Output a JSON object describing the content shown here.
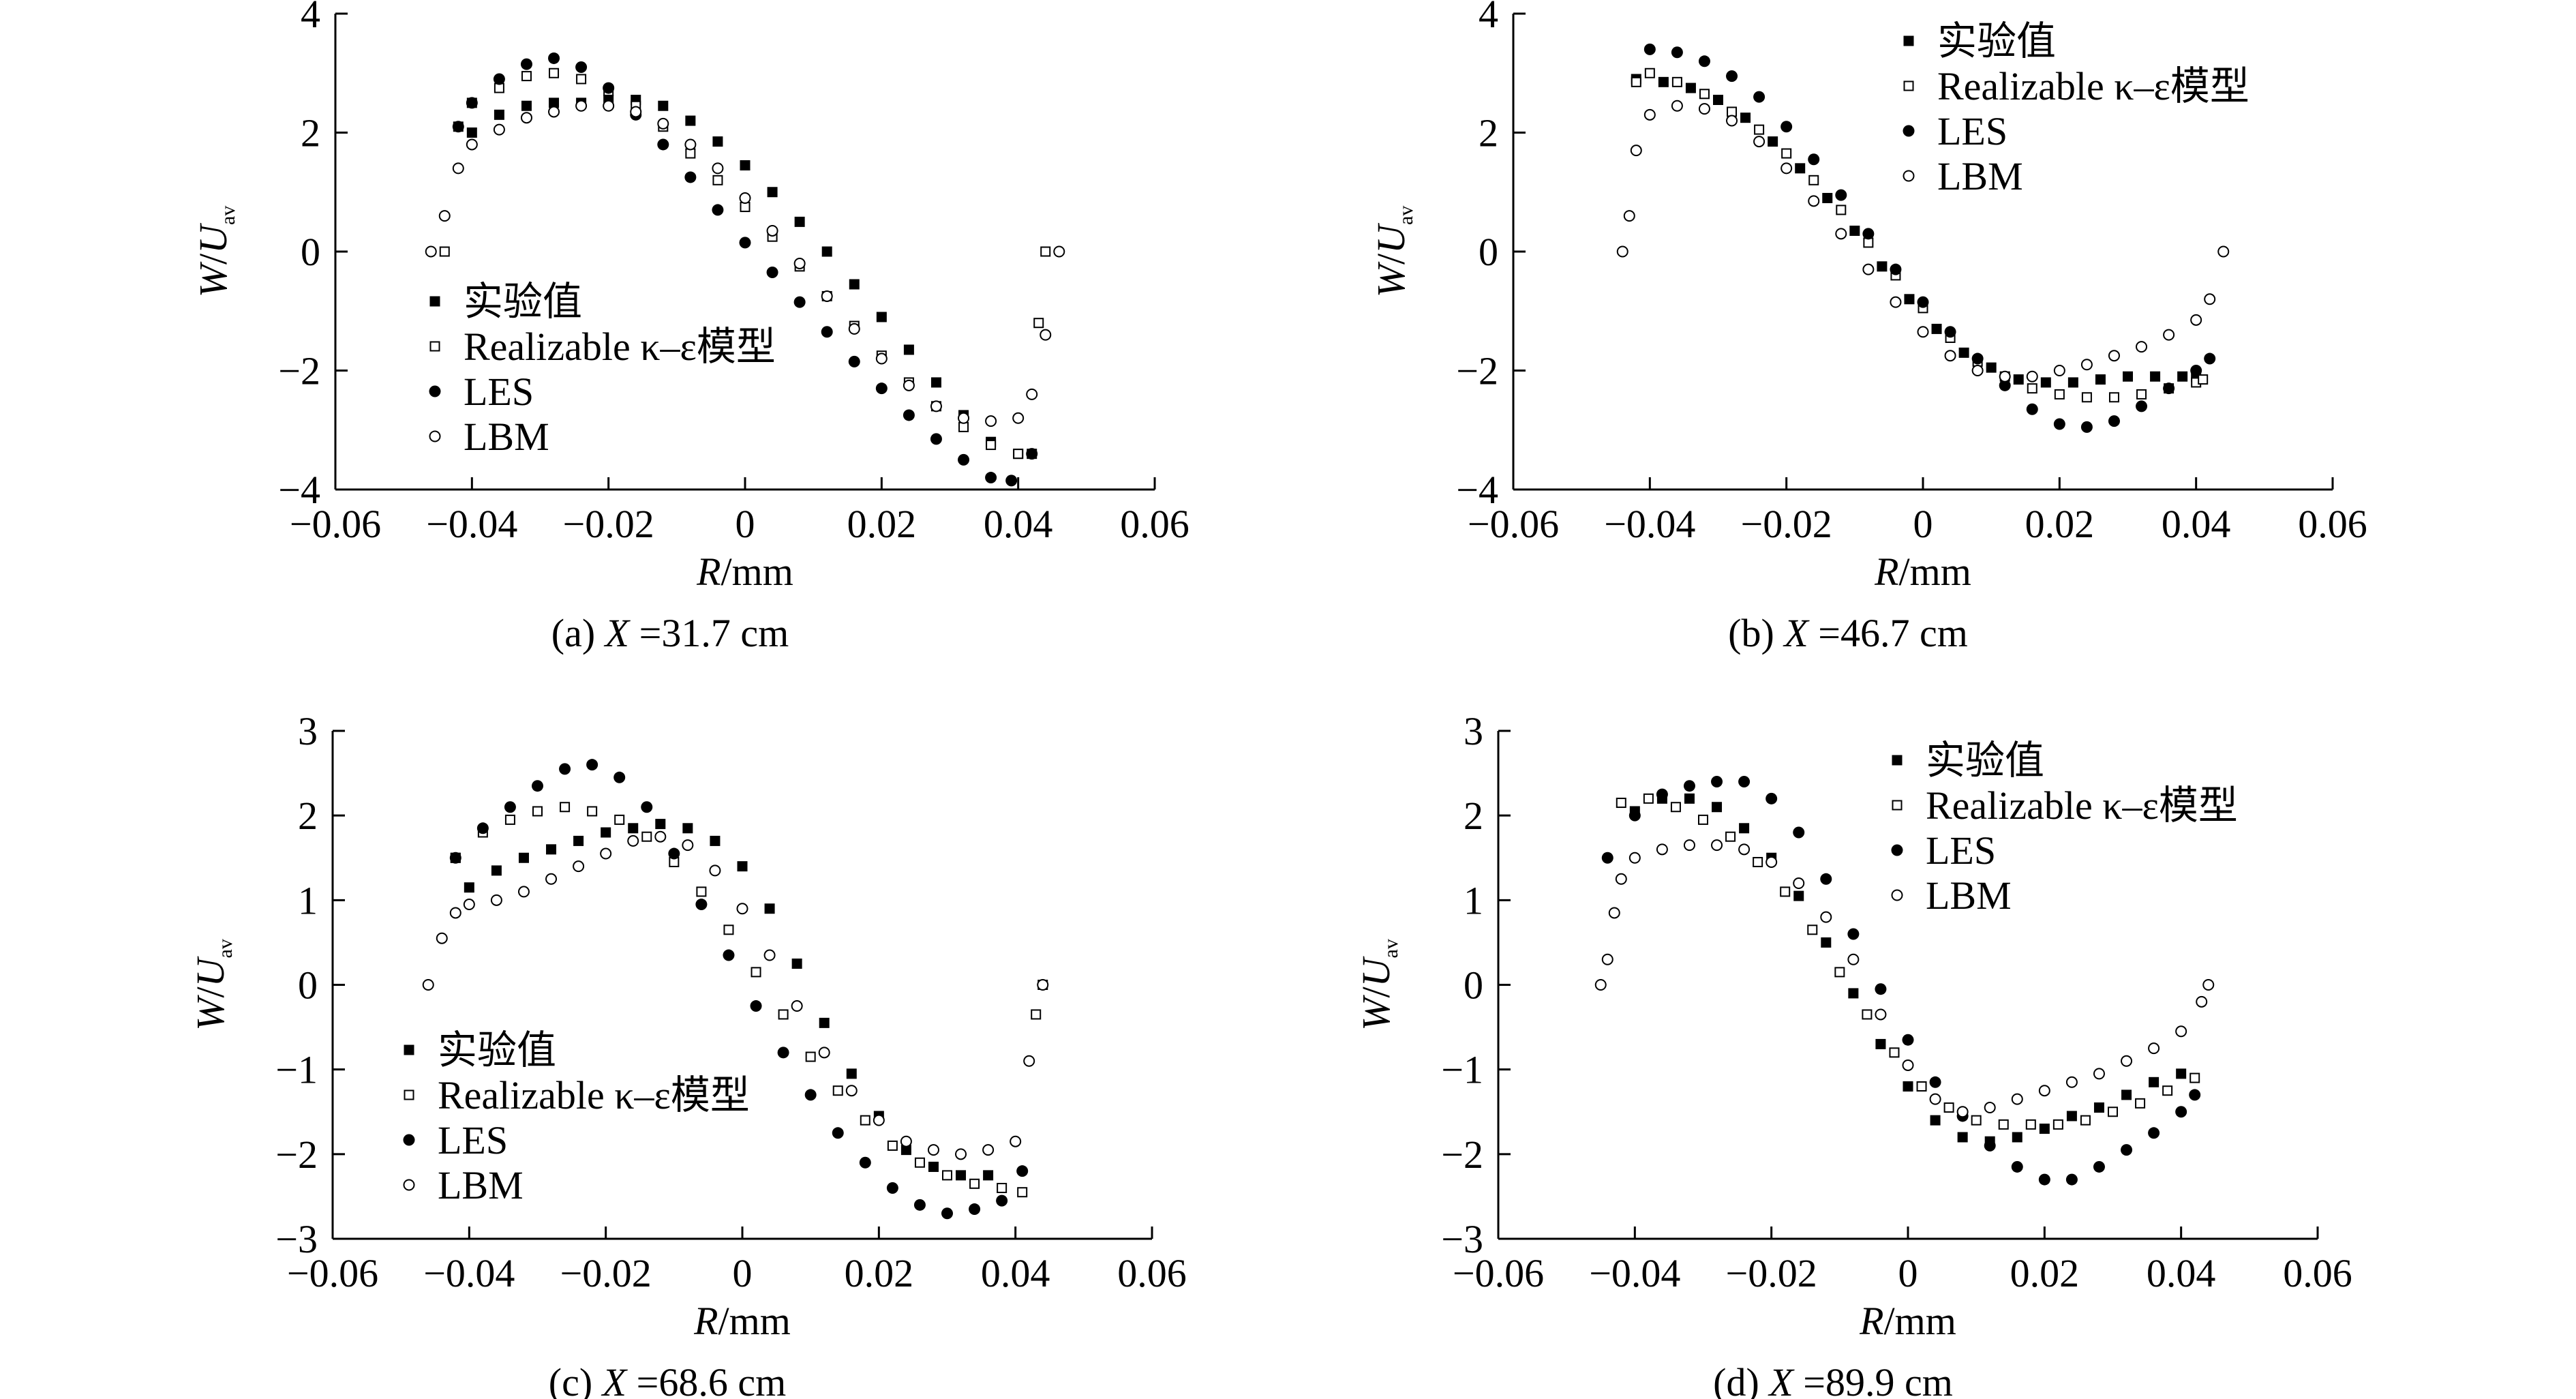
{
  "figure": {
    "xlabel_var": "R",
    "xlabel_unit": "/mm",
    "ylabel_var": "W",
    "ylabel_mid": "/",
    "ylabel_var2": "U",
    "ylabel_sub": "av",
    "legend_labels": [
      "实验值",
      "Realizable κ–ε模型",
      "LES",
      "LBM"
    ]
  },
  "chart_data": [
    {
      "type": "scatter",
      "panel": "a",
      "caption": {
        "prefix": "(a) ",
        "var": "X",
        "rest": " =31.7 cm"
      },
      "xlim": [
        -0.06,
        0.06
      ],
      "ylim": [
        -4,
        4
      ],
      "xticks": [
        "−0.06",
        "−0.04",
        "−0.02",
        "0",
        "0.02",
        "0.04",
        "0.06"
      ],
      "yticks": [
        "4",
        "2",
        "0",
        "−2",
        "−4"
      ],
      "legend_position": "lower-left",
      "series": [
        {
          "name": "实验值",
          "marker": "filled-square",
          "x": [
            -0.04,
            -0.036,
            -0.032,
            -0.028,
            -0.024,
            -0.02,
            -0.016,
            -0.012,
            -0.008,
            -0.004,
            0.0,
            0.004,
            0.008,
            0.012,
            0.016,
            0.02,
            0.024,
            0.028,
            0.032,
            0.036,
            0.04
          ],
          "y": [
            2.0,
            2.3,
            2.45,
            2.5,
            2.5,
            2.55,
            2.55,
            2.45,
            2.2,
            1.85,
            1.45,
            1.0,
            0.5,
            0.0,
            -0.55,
            -1.1,
            -1.65,
            -2.2,
            -2.75,
            -3.2,
            -3.4
          ]
        },
        {
          "name": "Realizable κ–ε模型",
          "marker": "open-square",
          "x": [
            -0.044,
            -0.042,
            -0.04,
            -0.036,
            -0.032,
            -0.028,
            -0.024,
            -0.02,
            -0.016,
            -0.012,
            -0.008,
            -0.004,
            0.0,
            0.004,
            0.008,
            0.012,
            0.016,
            0.02,
            0.024,
            0.028,
            0.032,
            0.036,
            0.04,
            0.042,
            0.043,
            0.044
          ],
          "y": [
            0.0,
            2.1,
            2.5,
            2.75,
            2.95,
            3.0,
            2.9,
            2.7,
            2.45,
            2.1,
            1.65,
            1.2,
            0.75,
            0.25,
            -0.25,
            -0.75,
            -1.25,
            -1.75,
            -2.2,
            -2.6,
            -2.95,
            -3.25,
            -3.4,
            -3.4,
            -1.2,
            0.0
          ]
        },
        {
          "name": "LES",
          "marker": "filled-circle",
          "x": [
            -0.042,
            -0.04,
            -0.036,
            -0.032,
            -0.028,
            -0.024,
            -0.02,
            -0.016,
            -0.012,
            -0.008,
            -0.004,
            0.0,
            0.004,
            0.008,
            0.012,
            0.016,
            0.02,
            0.024,
            0.028,
            0.032,
            0.036,
            0.039,
            0.042
          ],
          "y": [
            2.1,
            2.5,
            2.9,
            3.15,
            3.25,
            3.1,
            2.75,
            2.3,
            1.8,
            1.25,
            0.7,
            0.15,
            -0.35,
            -0.85,
            -1.35,
            -1.85,
            -2.3,
            -2.75,
            -3.15,
            -3.5,
            -3.8,
            -3.85,
            -3.4
          ]
        },
        {
          "name": "LBM",
          "marker": "open-circle",
          "x": [
            -0.046,
            -0.044,
            -0.042,
            -0.04,
            -0.036,
            -0.032,
            -0.028,
            -0.024,
            -0.02,
            -0.016,
            -0.012,
            -0.008,
            -0.004,
            0.0,
            0.004,
            0.008,
            0.012,
            0.016,
            0.02,
            0.024,
            0.028,
            0.032,
            0.036,
            0.04,
            0.042,
            0.044,
            0.046
          ],
          "y": [
            0.0,
            0.6,
            1.4,
            1.8,
            2.05,
            2.25,
            2.35,
            2.45,
            2.45,
            2.35,
            2.15,
            1.8,
            1.4,
            0.9,
            0.35,
            -0.2,
            -0.75,
            -1.3,
            -1.8,
            -2.25,
            -2.6,
            -2.8,
            -2.85,
            -2.8,
            -2.4,
            -1.4,
            0.0
          ]
        }
      ]
    },
    {
      "type": "scatter",
      "panel": "b",
      "caption": {
        "prefix": "(b) ",
        "var": "X",
        "rest": " =46.7 cm"
      },
      "xlim": [
        -0.06,
        0.06
      ],
      "ylim": [
        -4,
        4
      ],
      "xticks": [
        "−0.06",
        "−0.04",
        "−0.02",
        "0",
        "0.02",
        "0.04",
        "0.06"
      ],
      "yticks": [
        "4",
        "2",
        "0",
        "−2",
        "−4"
      ],
      "legend_position": "top-right",
      "series": [
        {
          "name": "实验值",
          "marker": "filled-square",
          "x": [
            -0.042,
            -0.038,
            -0.034,
            -0.03,
            -0.026,
            -0.022,
            -0.018,
            -0.014,
            -0.01,
            -0.006,
            -0.002,
            0.002,
            0.006,
            0.01,
            0.014,
            0.018,
            0.022,
            0.026,
            0.03,
            0.034,
            0.038,
            0.04
          ],
          "y": [
            2.9,
            2.85,
            2.75,
            2.55,
            2.25,
            1.85,
            1.4,
            0.9,
            0.35,
            -0.25,
            -0.8,
            -1.3,
            -1.7,
            -1.95,
            -2.15,
            -2.2,
            -2.2,
            -2.15,
            -2.1,
            -2.1,
            -2.1,
            -2.1
          ]
        },
        {
          "name": "Realizable κ–ε模型",
          "marker": "open-square",
          "x": [
            -0.042,
            -0.04,
            -0.036,
            -0.032,
            -0.028,
            -0.024,
            -0.02,
            -0.016,
            -0.012,
            -0.008,
            -0.004,
            0.0,
            0.004,
            0.008,
            0.012,
            0.016,
            0.02,
            0.024,
            0.028,
            0.032,
            0.036,
            0.04,
            0.041
          ],
          "y": [
            2.85,
            3.0,
            2.85,
            2.65,
            2.35,
            2.05,
            1.65,
            1.2,
            0.7,
            0.15,
            -0.4,
            -0.95,
            -1.45,
            -1.85,
            -2.1,
            -2.3,
            -2.4,
            -2.45,
            -2.45,
            -2.4,
            -2.3,
            -2.2,
            -2.15
          ]
        },
        {
          "name": "LES",
          "marker": "filled-circle",
          "x": [
            -0.04,
            -0.036,
            -0.032,
            -0.028,
            -0.024,
            -0.02,
            -0.016,
            -0.012,
            -0.008,
            -0.004,
            0.0,
            0.004,
            0.008,
            0.012,
            0.016,
            0.02,
            0.024,
            0.028,
            0.032,
            0.036,
            0.04,
            0.042
          ],
          "y": [
            3.4,
            3.35,
            3.2,
            2.95,
            2.6,
            2.1,
            1.55,
            0.95,
            0.3,
            -0.3,
            -0.85,
            -1.35,
            -1.8,
            -2.25,
            -2.65,
            -2.9,
            -2.95,
            -2.85,
            -2.6,
            -2.3,
            -2.0,
            -1.8
          ]
        },
        {
          "name": "LBM",
          "marker": "open-circle",
          "x": [
            -0.044,
            -0.043,
            -0.042,
            -0.04,
            -0.036,
            -0.032,
            -0.028,
            -0.024,
            -0.02,
            -0.016,
            -0.012,
            -0.008,
            -0.004,
            0.0,
            0.004,
            0.008,
            0.012,
            0.016,
            0.02,
            0.024,
            0.028,
            0.032,
            0.036,
            0.04,
            0.042,
            0.044
          ],
          "y": [
            0.0,
            0.6,
            1.7,
            2.3,
            2.45,
            2.4,
            2.2,
            1.85,
            1.4,
            0.85,
            0.3,
            -0.3,
            -0.85,
            -1.35,
            -1.75,
            -2.0,
            -2.1,
            -2.1,
            -2.0,
            -1.9,
            -1.75,
            -1.6,
            -1.4,
            -1.15,
            -0.8,
            0.0
          ]
        }
      ]
    },
    {
      "type": "scatter",
      "panel": "c",
      "caption": {
        "prefix": "(c) ",
        "var": "X",
        "rest": " =68.6 cm"
      },
      "xlim": [
        -0.06,
        0.06
      ],
      "ylim": [
        -3,
        3
      ],
      "xticks": [
        "−0.06",
        "−0.04",
        "−0.02",
        "0",
        "0.02",
        "0.04",
        "0.06"
      ],
      "yticks": [
        "3",
        "2",
        "1",
        "0",
        "−1",
        "−2",
        "−3"
      ],
      "legend_position": "lower-left",
      "series": [
        {
          "name": "实验值",
          "marker": "filled-square",
          "x": [
            -0.042,
            -0.04,
            -0.036,
            -0.032,
            -0.028,
            -0.024,
            -0.02,
            -0.016,
            -0.012,
            -0.008,
            -0.004,
            0.0,
            0.004,
            0.008,
            0.012,
            0.016,
            0.02,
            0.024,
            0.028,
            0.032,
            0.036
          ],
          "y": [
            1.5,
            1.15,
            1.35,
            1.5,
            1.6,
            1.7,
            1.8,
            1.85,
            1.9,
            1.85,
            1.7,
            1.4,
            0.9,
            0.25,
            -0.45,
            -1.05,
            -1.55,
            -1.95,
            -2.15,
            -2.25,
            -2.25
          ]
        },
        {
          "name": "Realizable κ–ε模型",
          "marker": "open-square",
          "x": [
            -0.042,
            -0.038,
            -0.034,
            -0.03,
            -0.026,
            -0.022,
            -0.018,
            -0.014,
            -0.01,
            -0.006,
            -0.002,
            0.002,
            0.006,
            0.01,
            0.014,
            0.018,
            0.022,
            0.026,
            0.03,
            0.034,
            0.038,
            0.041,
            0.043,
            0.044
          ],
          "y": [
            1.5,
            1.8,
            1.95,
            2.05,
            2.1,
            2.05,
            1.95,
            1.75,
            1.45,
            1.1,
            0.65,
            0.15,
            -0.35,
            -0.85,
            -1.25,
            -1.6,
            -1.9,
            -2.1,
            -2.25,
            -2.35,
            -2.4,
            -2.45,
            -0.35,
            0.0
          ]
        },
        {
          "name": "LES",
          "marker": "filled-circle",
          "x": [
            -0.042,
            -0.038,
            -0.034,
            -0.03,
            -0.026,
            -0.022,
            -0.018,
            -0.014,
            -0.01,
            -0.006,
            -0.002,
            0.002,
            0.006,
            0.01,
            0.014,
            0.018,
            0.022,
            0.026,
            0.03,
            0.034,
            0.038,
            0.041
          ],
          "y": [
            1.5,
            1.85,
            2.1,
            2.35,
            2.55,
            2.6,
            2.45,
            2.1,
            1.55,
            0.95,
            0.35,
            -0.25,
            -0.8,
            -1.3,
            -1.75,
            -2.1,
            -2.4,
            -2.6,
            -2.7,
            -2.65,
            -2.55,
            -2.2
          ]
        },
        {
          "name": "LBM",
          "marker": "open-circle",
          "x": [
            -0.046,
            -0.044,
            -0.042,
            -0.04,
            -0.036,
            -0.032,
            -0.028,
            -0.024,
            -0.02,
            -0.016,
            -0.012,
            -0.008,
            -0.004,
            0.0,
            0.004,
            0.008,
            0.012,
            0.016,
            0.02,
            0.024,
            0.028,
            0.032,
            0.036,
            0.04,
            0.042,
            0.044
          ],
          "y": [
            0.0,
            0.55,
            0.85,
            0.95,
            1.0,
            1.1,
            1.25,
            1.4,
            1.55,
            1.7,
            1.75,
            1.65,
            1.35,
            0.9,
            0.35,
            -0.25,
            -0.8,
            -1.25,
            -1.6,
            -1.85,
            -1.95,
            -2.0,
            -1.95,
            -1.85,
            -0.9,
            0.0
          ]
        }
      ]
    },
    {
      "type": "scatter",
      "panel": "d",
      "caption": {
        "prefix": "(d) ",
        "var": "X",
        "rest": " =89.9 cm"
      },
      "xlim": [
        -0.06,
        0.06
      ],
      "ylim": [
        -3,
        3
      ],
      "xticks": [
        "−0.06",
        "−0.04",
        "−0.02",
        "0",
        "0.02",
        "0.04",
        "0.06"
      ],
      "yticks": [
        "3",
        "2",
        "1",
        "0",
        "−1",
        "−2",
        "−3"
      ],
      "legend_position": "top-right",
      "series": [
        {
          "name": "实验值",
          "marker": "filled-square",
          "x": [
            -0.04,
            -0.036,
            -0.032,
            -0.028,
            -0.024,
            -0.02,
            -0.016,
            -0.012,
            -0.008,
            -0.004,
            0.0,
            0.004,
            0.008,
            0.012,
            0.016,
            0.02,
            0.024,
            0.028,
            0.032,
            0.036,
            0.04
          ],
          "y": [
            2.05,
            2.2,
            2.2,
            2.1,
            1.85,
            1.5,
            1.05,
            0.5,
            -0.1,
            -0.7,
            -1.2,
            -1.6,
            -1.8,
            -1.85,
            -1.8,
            -1.7,
            -1.55,
            -1.45,
            -1.3,
            -1.15,
            -1.05
          ]
        },
        {
          "name": "Realizable κ–ε模型",
          "marker": "open-square",
          "x": [
            -0.042,
            -0.038,
            -0.034,
            -0.03,
            -0.026,
            -0.022,
            -0.018,
            -0.014,
            -0.01,
            -0.006,
            -0.002,
            0.002,
            0.006,
            0.01,
            0.014,
            0.018,
            0.022,
            0.026,
            0.03,
            0.034,
            0.038,
            0.042
          ],
          "y": [
            2.15,
            2.2,
            2.1,
            1.95,
            1.75,
            1.45,
            1.1,
            0.65,
            0.15,
            -0.35,
            -0.8,
            -1.2,
            -1.45,
            -1.6,
            -1.65,
            -1.65,
            -1.65,
            -1.6,
            -1.5,
            -1.4,
            -1.25,
            -1.1
          ]
        },
        {
          "name": "LES",
          "marker": "filled-circle",
          "x": [
            -0.044,
            -0.04,
            -0.036,
            -0.032,
            -0.028,
            -0.024,
            -0.02,
            -0.016,
            -0.012,
            -0.008,
            -0.004,
            0.0,
            0.004,
            0.008,
            0.012,
            0.016,
            0.02,
            0.024,
            0.028,
            0.032,
            0.036,
            0.04,
            0.042
          ],
          "y": [
            1.5,
            2.0,
            2.25,
            2.35,
            2.4,
            2.4,
            2.2,
            1.8,
            1.25,
            0.6,
            -0.05,
            -0.65,
            -1.15,
            -1.55,
            -1.9,
            -2.15,
            -2.3,
            -2.3,
            -2.15,
            -1.95,
            -1.75,
            -1.5,
            -1.3
          ]
        },
        {
          "name": "LBM",
          "marker": "open-circle",
          "x": [
            -0.045,
            -0.044,
            -0.043,
            -0.042,
            -0.04,
            -0.036,
            -0.032,
            -0.028,
            -0.024,
            -0.02,
            -0.016,
            -0.012,
            -0.008,
            -0.004,
            0.0,
            0.004,
            0.008,
            0.012,
            0.016,
            0.02,
            0.024,
            0.028,
            0.032,
            0.036,
            0.04,
            0.043,
            0.044
          ],
          "y": [
            0.0,
            0.3,
            0.85,
            1.25,
            1.5,
            1.6,
            1.65,
            1.65,
            1.6,
            1.45,
            1.2,
            0.8,
            0.3,
            -0.35,
            -0.95,
            -1.35,
            -1.5,
            -1.45,
            -1.35,
            -1.25,
            -1.15,
            -1.05,
            -0.9,
            -0.75,
            -0.55,
            -0.2,
            0.0
          ]
        }
      ]
    }
  ]
}
